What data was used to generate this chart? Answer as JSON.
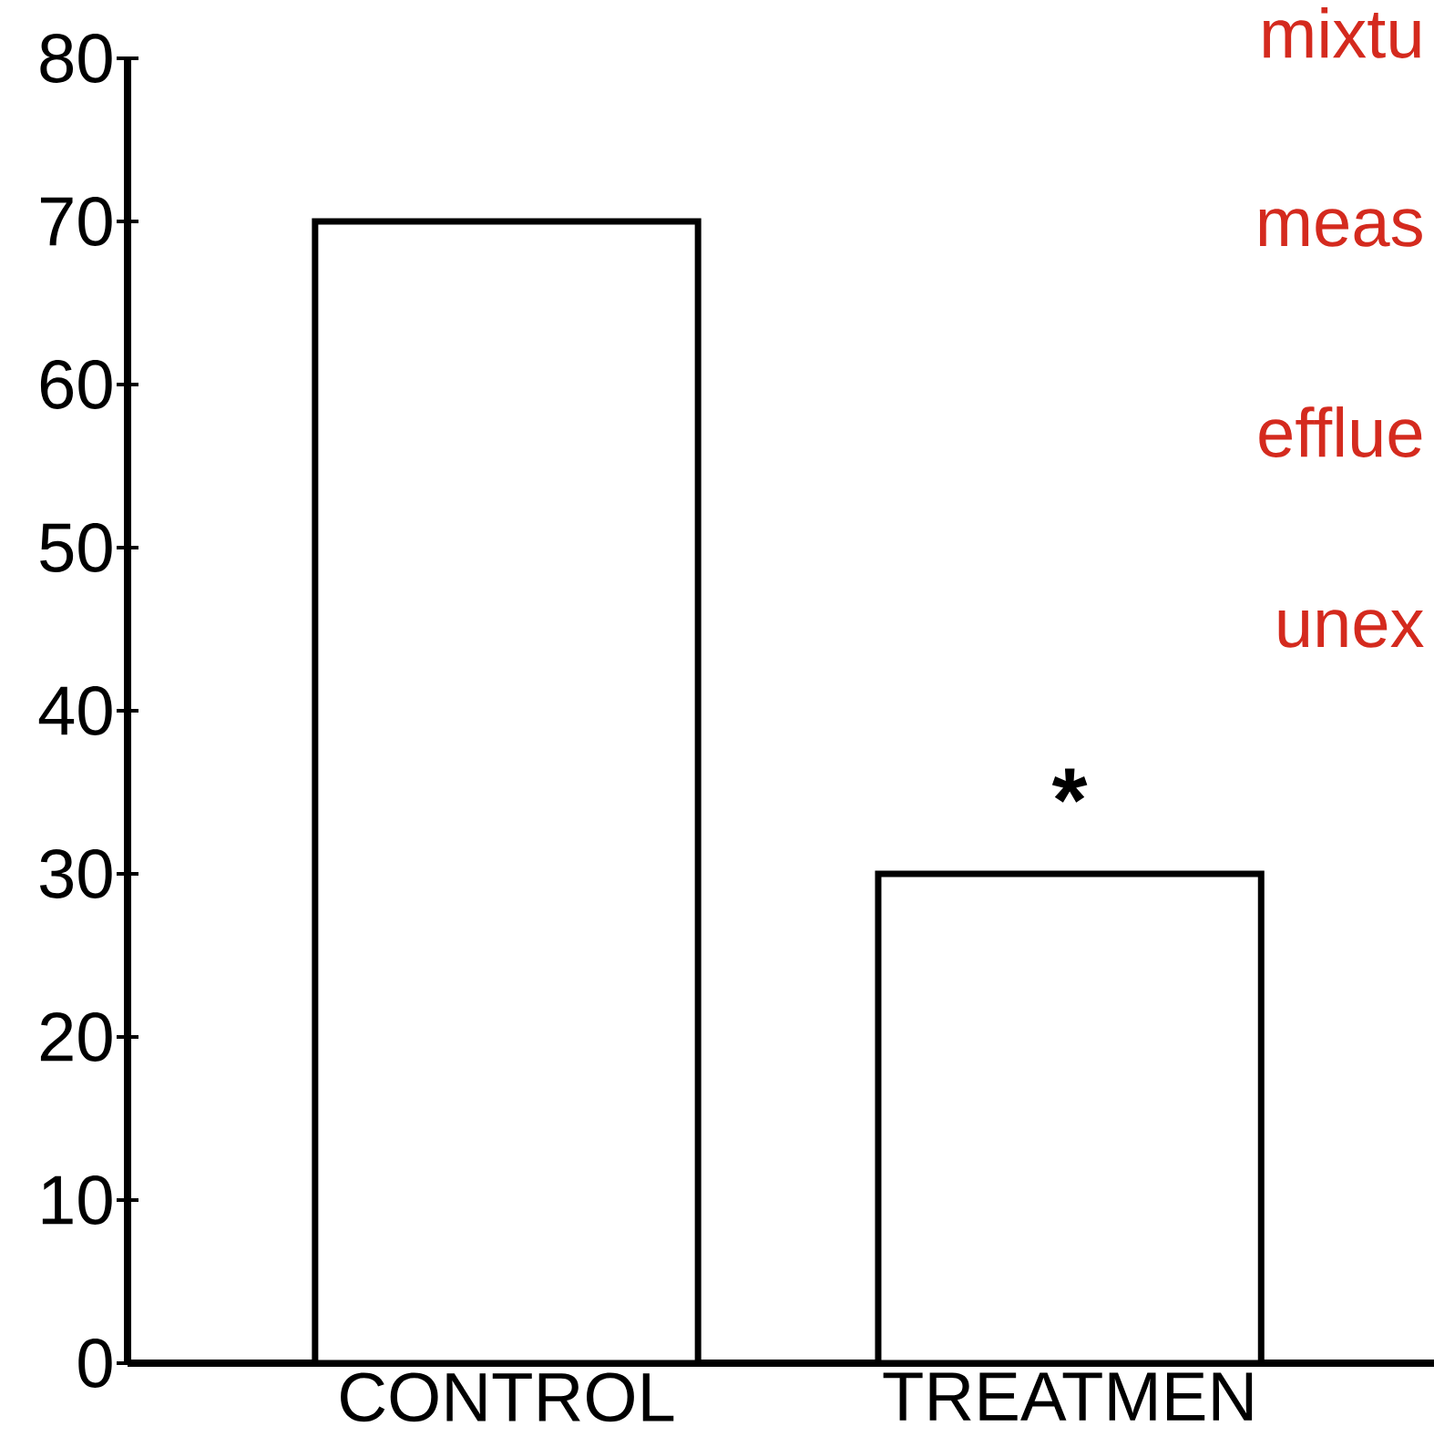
{
  "chart_data": {
    "type": "bar",
    "categories": [
      "CONTROL",
      "TREATMEN"
    ],
    "values": [
      70,
      30
    ],
    "color": "#ffffff",
    "ylim": [
      0,
      80
    ],
    "yticks": [
      0,
      10,
      20,
      30,
      40,
      50,
      60,
      70,
      80
    ],
    "annotations": [
      "mixtu",
      "meas",
      "efflue",
      "unex",
      "*"
    ]
  }
}
